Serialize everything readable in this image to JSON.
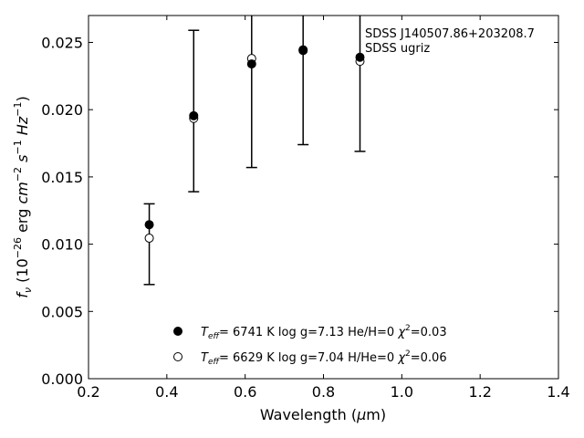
{
  "chart_data": {
    "type": "scatter",
    "xlim": [
      0.2,
      1.4
    ],
    "ylim": [
      0.0,
      0.027
    ],
    "xticks": [
      "0.2",
      "0.4",
      "0.6",
      "0.8",
      "1.0",
      "1.2",
      "1.4"
    ],
    "xtick_values": [
      0.2,
      0.4,
      0.6,
      0.8,
      1.0,
      1.2,
      1.4
    ],
    "yticks": [
      "0.000",
      "0.005",
      "0.010",
      "0.015",
      "0.020",
      "0.025"
    ],
    "ytick_values": [
      0.0,
      0.005,
      0.01,
      0.015,
      0.02,
      0.025
    ],
    "xlabel": "Wavelength (μm)",
    "ylabel": "f_ν (10^-26 erg cm^-2 s^-1 Hz^-1)",
    "annotation": [
      "SDSS J140507.86+203208.7",
      "SDSS ugriz"
    ],
    "grid": false,
    "legend_position": "bottom-center",
    "observed": {
      "x": [
        0.3551,
        0.4686,
        0.6166,
        0.748,
        0.8932
      ],
      "yerr_low": [
        0.007,
        0.0139,
        0.0157,
        0.0174,
        0.0169
      ],
      "yerr_high": [
        0.013,
        0.0259,
        0.03,
        0.03,
        0.03
      ]
    },
    "series": [
      {
        "name": "He/H=0",
        "marker": "filled-circle",
        "teff_label": "T_eff=",
        "label_rest": "6741 K  log g=7.13  He/H=0",
        "chi2_label": "χ²=0.03",
        "x": [
          0.3551,
          0.4686,
          0.6166,
          0.748,
          0.8932
        ],
        "y": [
          0.01145,
          0.01955,
          0.0234,
          0.02445,
          0.0239
        ]
      },
      {
        "name": "H/He=0",
        "marker": "open-circle",
        "teff_label": "T_eff=",
        "label_rest": "6629 K  log g=7.04  H/He=0",
        "chi2_label": "χ²=0.06",
        "x": [
          0.3551,
          0.4686,
          0.6166,
          0.748,
          0.8932
        ],
        "y": [
          0.01045,
          0.01935,
          0.0238,
          0.0244,
          0.0236
        ]
      }
    ]
  }
}
